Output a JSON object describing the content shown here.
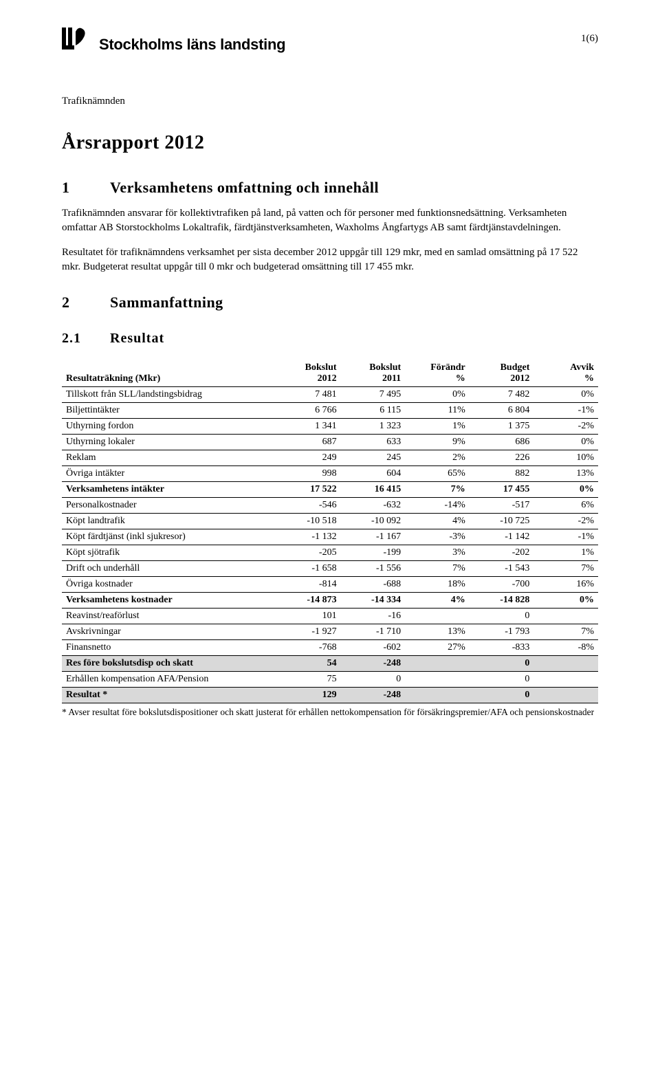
{
  "header": {
    "org_name": "Stockholms läns landsting",
    "page_number": "1(6)",
    "department": "Trafiknämnden",
    "logo_color": "#000000"
  },
  "title": "Årsrapport 2012",
  "section1": {
    "num": "1",
    "heading": "Verksamhetens omfattning och innehåll",
    "para1": "Trafiknämnden ansvarar för kollektivtrafiken på land, på vatten och för personer med funktionsnedsättning. Verksamheten omfattar AB Storstockholms Lokaltrafik, färdtjänstverksamheten, Waxholms Ångfartygs AB samt färdtjänstavdelningen.",
    "para2": "Resultatet för trafiknämndens verksamhet per sista december 2012 uppgår till 129 mkr, med en samlad omsättning på 17 522 mkr. Budgeterat resultat uppgår till 0 mkr och budgeterad omsättning till 17 455 mkr."
  },
  "section2": {
    "num": "2",
    "heading": "Sammanfattning"
  },
  "section21": {
    "num": "2.1",
    "heading": "Resultat"
  },
  "table": {
    "head": {
      "label": "Resultaträkning (Mkr)",
      "c1a": "Bokslut",
      "c1b": "2012",
      "c2a": "Bokslut",
      "c2b": "2011",
      "c3a": "Förändr",
      "c3b": "%",
      "c4a": "Budget",
      "c4b": "2012",
      "c5a": "Avvik",
      "c5b": "%"
    },
    "rows": [
      {
        "label": "Tillskott från SLL/landstingsbidrag",
        "v": [
          "7 481",
          "7 495",
          "0%",
          "7 482",
          "0%"
        ],
        "cls": ""
      },
      {
        "label": "Biljettintäkter",
        "v": [
          "6 766",
          "6 115",
          "11%",
          "6 804",
          "-1%"
        ],
        "cls": ""
      },
      {
        "label": "Uthyrning fordon",
        "v": [
          "1 341",
          "1 323",
          "1%",
          "1 375",
          "-2%"
        ],
        "cls": ""
      },
      {
        "label": "Uthyrning lokaler",
        "v": [
          "687",
          "633",
          "9%",
          "686",
          "0%"
        ],
        "cls": ""
      },
      {
        "label": "Reklam",
        "v": [
          "249",
          "245",
          "2%",
          "226",
          "10%"
        ],
        "cls": ""
      },
      {
        "label": "Övriga intäkter",
        "v": [
          "998",
          "604",
          "65%",
          "882",
          "13%"
        ],
        "cls": ""
      },
      {
        "label": "Verksamhetens intäkter",
        "v": [
          "17 522",
          "16 415",
          "7%",
          "17 455",
          "0%"
        ],
        "cls": "bold"
      },
      {
        "label": "Personalkostnader",
        "v": [
          "-546",
          "-632",
          "-14%",
          "-517",
          "6%"
        ],
        "cls": ""
      },
      {
        "label": "Köpt landtrafik",
        "v": [
          "-10 518",
          "-10 092",
          "4%",
          "-10 725",
          "-2%"
        ],
        "cls": ""
      },
      {
        "label": "Köpt färdtjänst (inkl sjukresor)",
        "v": [
          "-1 132",
          "-1 167",
          "-3%",
          "-1 142",
          "-1%"
        ],
        "cls": ""
      },
      {
        "label": "Köpt sjötrafik",
        "v": [
          "-205",
          "-199",
          "3%",
          "-202",
          "1%"
        ],
        "cls": ""
      },
      {
        "label": "Drift och underhåll",
        "v": [
          "-1 658",
          "-1 556",
          "7%",
          "-1 543",
          "7%"
        ],
        "cls": ""
      },
      {
        "label": "Övriga kostnader",
        "v": [
          "-814",
          "-688",
          "18%",
          "-700",
          "16%"
        ],
        "cls": ""
      },
      {
        "label": "Verksamhetens kostnader",
        "v": [
          "-14 873",
          "-14 334",
          "4%",
          "-14 828",
          "0%"
        ],
        "cls": "bold"
      },
      {
        "label": "Reavinst/reaförlust",
        "v": [
          "101",
          "-16",
          "",
          "0",
          ""
        ],
        "cls": ""
      },
      {
        "label": "Avskrivningar",
        "v": [
          "-1 927",
          "-1 710",
          "13%",
          "-1 793",
          "7%"
        ],
        "cls": ""
      },
      {
        "label": "Finansnetto",
        "v": [
          "-768",
          "-602",
          "27%",
          "-833",
          "-8%"
        ],
        "cls": ""
      },
      {
        "label": "Res före bokslutsdisp och skatt",
        "v": [
          "54",
          "-248",
          "",
          "0",
          ""
        ],
        "cls": "shade"
      },
      {
        "label": "Erhållen kompensation AFA/Pension",
        "v": [
          "75",
          "0",
          "",
          "0",
          ""
        ],
        "cls": ""
      },
      {
        "label": "Resultat *",
        "v": [
          "129",
          "-248",
          "",
          "0",
          ""
        ],
        "cls": "shade"
      }
    ],
    "footnote": "* Avser resultat före bokslutsdispositioner och skatt justerat för erhållen nettokompensation för försäkringspremier/AFA och pensionskostnader"
  }
}
